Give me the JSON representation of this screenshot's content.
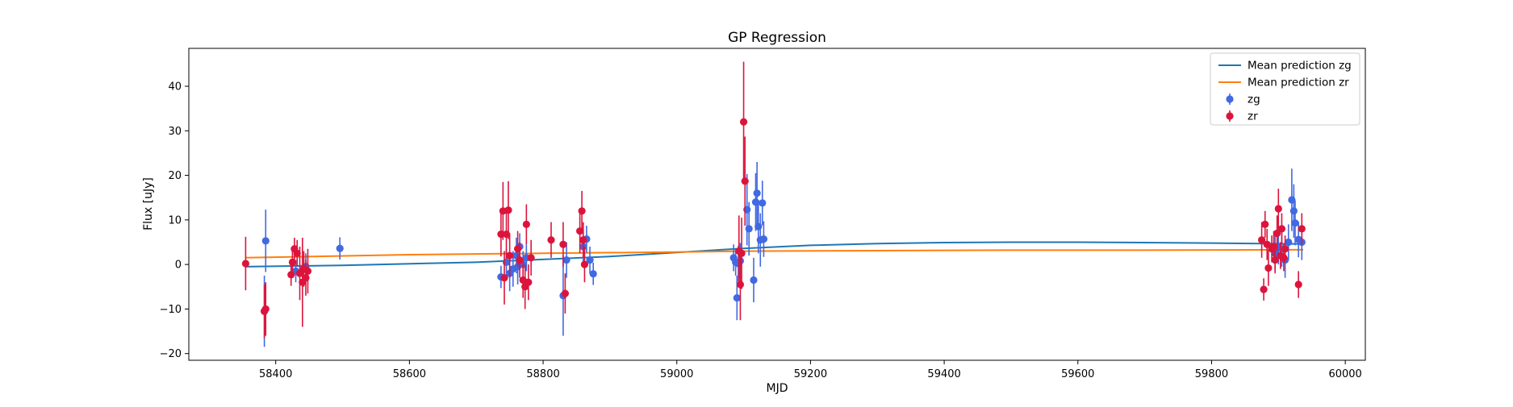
{
  "chart_data": {
    "type": "scatter",
    "title": "GP Regression",
    "xlabel": "MJD",
    "ylabel": "Flux [uJy]",
    "xlim": [
      58270,
      60030
    ],
    "ylim": [
      -21.5,
      48.5
    ],
    "xticks": [
      58400,
      58600,
      58800,
      59000,
      59200,
      59400,
      59600,
      59800,
      60000
    ],
    "yticks": [
      -20,
      -10,
      0,
      10,
      20,
      30,
      40
    ],
    "grid": false,
    "legend_position": "top-right",
    "lines": [
      {
        "name": "Mean prediction zg",
        "color": "#1f77b4",
        "x": [
          58355,
          58500,
          58700,
          58900,
          59000,
          59100,
          59200,
          59300,
          59400,
          59500,
          59600,
          59700,
          59800,
          59937
        ],
        "y": [
          -0.5,
          -0.2,
          0.5,
          1.8,
          2.7,
          3.6,
          4.3,
          4.7,
          4.9,
          5.0,
          5.0,
          4.9,
          4.8,
          4.6
        ]
      },
      {
        "name": "Mean prediction zr",
        "color": "#ff7f0e",
        "x": [
          58355,
          58600,
          58800,
          59000,
          59100,
          59300,
          59500,
          59700,
          59937
        ],
        "y": [
          1.5,
          2.2,
          2.5,
          2.8,
          3.0,
          3.1,
          3.2,
          3.2,
          3.3
        ]
      }
    ],
    "series": [
      {
        "name": "zg",
        "color": "#4169e1",
        "x": [
          58385,
          58383,
          58430,
          58445,
          58496,
          58737,
          58745,
          58750,
          58755,
          58760,
          58762,
          58765,
          58770,
          58775,
          58830,
          58835,
          58860,
          58865,
          58870,
          58875,
          59085,
          59088,
          59090,
          59092,
          59095,
          59105,
          59108,
          59115,
          59118,
          59120,
          59122,
          59125,
          59128,
          59130,
          59895,
          59900,
          59905,
          59910,
          59915,
          59920,
          59923,
          59925,
          59930,
          59935
        ],
        "y": [
          5.3,
          -10.5,
          -1.5,
          -0.5,
          3.6,
          -2.8,
          0.5,
          -2.0,
          -1.0,
          2.0,
          -0.5,
          4.0,
          0.0,
          1.5,
          -7.0,
          1.0,
          4.0,
          5.7,
          1.0,
          -2.1,
          1.5,
          0.5,
          -7.5,
          0.2,
          0.8,
          12.3,
          8.0,
          -3.5,
          14.0,
          16.0,
          8.5,
          5.5,
          13.8,
          5.7,
          2.5,
          4.0,
          3.5,
          1.0,
          5.0,
          14.5,
          12.0,
          9.3,
          5.6,
          5.0
        ],
        "err": [
          7,
          8,
          2.5,
          3,
          2.5,
          2.5,
          3,
          4,
          4,
          4,
          4,
          3,
          3,
          3,
          9,
          4,
          4,
          3,
          3,
          2.5,
          3,
          3,
          5,
          4,
          4,
          8,
          6,
          5,
          6.5,
          7,
          6,
          6,
          5,
          4,
          4,
          4,
          4,
          4,
          4,
          7,
          6,
          5,
          4,
          4
        ]
      },
      {
        "name": "zr",
        "color": "#dc143c",
        "x": [
          58355,
          58383,
          58385,
          58423,
          58425,
          58428,
          58432,
          58436,
          58440,
          58442,
          58445,
          58448,
          58737,
          58740,
          58742,
          58745,
          58748,
          58750,
          58762,
          58765,
          58770,
          58773,
          58775,
          58778,
          58782,
          58812,
          58830,
          58833,
          58855,
          58858,
          58860,
          58862,
          59093,
          59095,
          59097,
          59100,
          59102,
          59875,
          59878,
          59880,
          59883,
          59885,
          59890,
          59893,
          59895,
          59898,
          59900,
          59903,
          59905,
          59908,
          59910,
          59930,
          59935
        ],
        "y": [
          0.2,
          -10.5,
          -10.0,
          -2.3,
          0.5,
          3.5,
          2.5,
          -2.0,
          -4.0,
          -1.0,
          -3.0,
          -1.5,
          6.8,
          12.0,
          -3.0,
          6.8,
          12.2,
          2.0,
          3.5,
          1.0,
          -3.5,
          -5.0,
          9.0,
          -4.0,
          1.5,
          5.5,
          4.5,
          -6.5,
          7.5,
          12.0,
          5.5,
          0.0,
          3.0,
          -4.5,
          2.5,
          32.0,
          18.7,
          5.5,
          -5.6,
          9.0,
          4.5,
          -0.8,
          3.5,
          4.0,
          1.0,
          7.0,
          12.5,
          2.0,
          8.0,
          1.5,
          3.5,
          -4.5,
          8.0
        ],
        "err": [
          6,
          6,
          6,
          2.5,
          3,
          2.5,
          3,
          6,
          10,
          4,
          4,
          5,
          5,
          6.5,
          6,
          5.5,
          6.5,
          5,
          4,
          4,
          4,
          5,
          4.5,
          4,
          4,
          4,
          5,
          4.5,
          5,
          4.5,
          4,
          4,
          8,
          8,
          8,
          13.5,
          10,
          4,
          2.5,
          3,
          3.5,
          4,
          3,
          3.5,
          3,
          4,
          4.5,
          3,
          3.5,
          3,
          3,
          3,
          3.5
        ]
      }
    ]
  }
}
